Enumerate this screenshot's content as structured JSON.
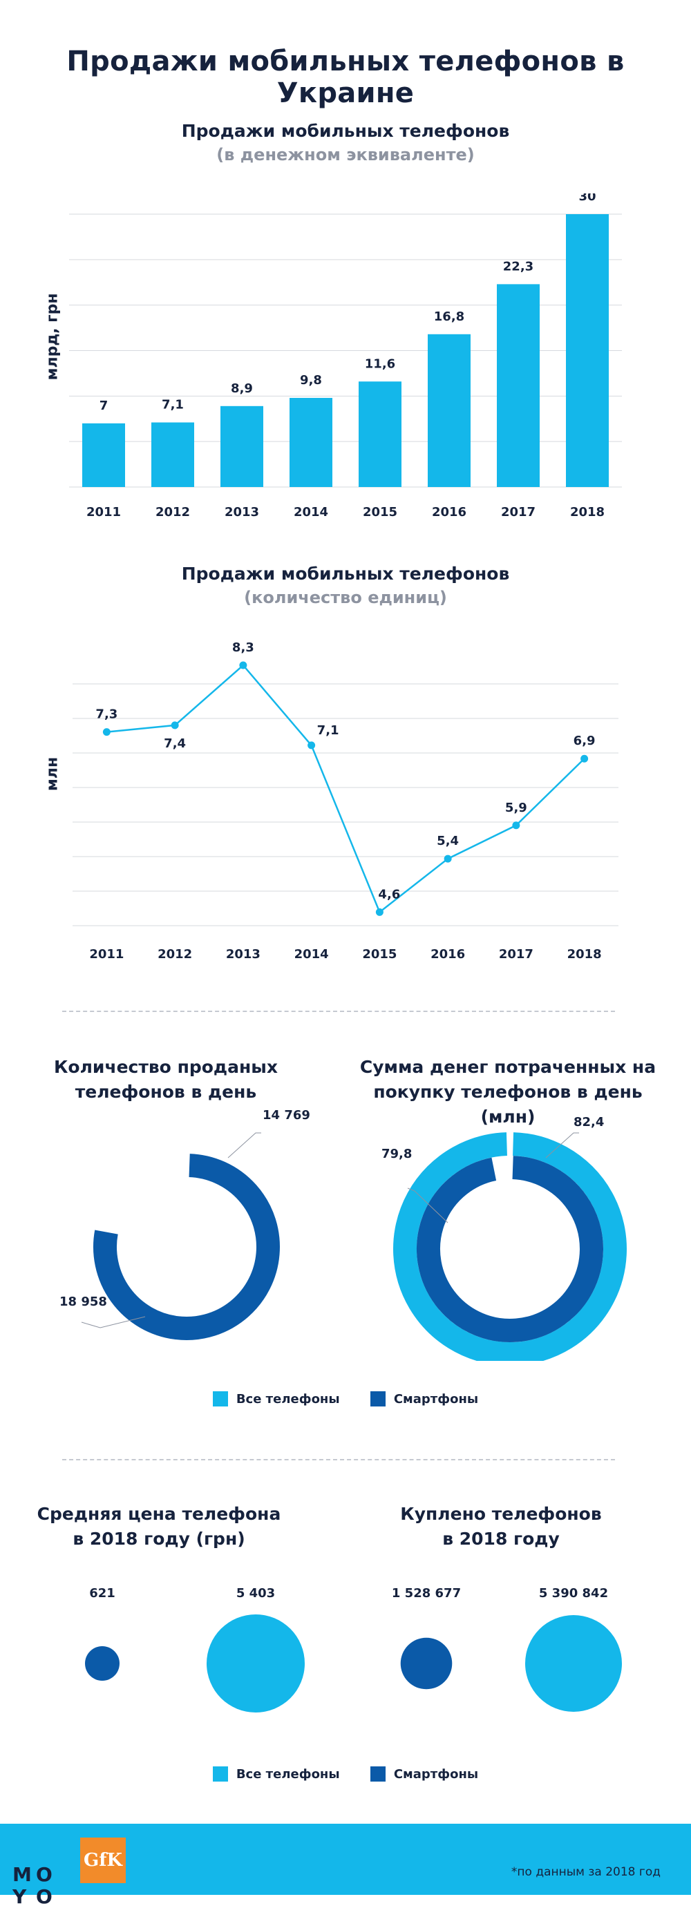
{
  "page_title": "Продажи мобильных телефонов в Украине",
  "colors": {
    "light": "#14b7ea",
    "dark": "#0b5aa8",
    "grid": "#d6d9de",
    "text": "#16223d"
  },
  "chart_data": [
    {
      "type": "bar",
      "title": "Продажи  мобильных телефонов",
      "subtitle": "(в денежном эквиваленте)",
      "ylabel": "млрд, грн",
      "categories": [
        "2011",
        "2012",
        "2013",
        "2014",
        "2015",
        "2016",
        "2017",
        "2018"
      ],
      "values": [
        7,
        7.1,
        8.9,
        9.8,
        11.6,
        16.8,
        22.3,
        30
      ],
      "value_labels": [
        "7",
        "7,1",
        "8,9",
        "9,8",
        "11,6",
        "16,8",
        "22,3",
        "30"
      ],
      "ylim": [
        0,
        30
      ],
      "grid": true
    },
    {
      "type": "line",
      "title": "Продажи  мобильных телефонов",
      "subtitle": "(количество единиц)",
      "ylabel": "млн",
      "categories": [
        "2011",
        "2012",
        "2013",
        "2014",
        "2015",
        "2016",
        "2017",
        "2018"
      ],
      "values": [
        7.3,
        7.4,
        8.3,
        7.1,
        4.6,
        5.4,
        5.9,
        6.9
      ],
      "value_labels": [
        "7,3",
        "7,4",
        "8,3",
        "7,1",
        "4,6",
        "5,4",
        "5,9",
        "6,9"
      ],
      "ylim": [
        4.5,
        8.0
      ],
      "grid": true
    },
    {
      "type": "pie",
      "title": "Количество проданых телефонов в день",
      "slices": [
        {
          "name": "Все телефоны",
          "value": 18958,
          "label": "18 958"
        },
        {
          "name": "Смартфоны",
          "value": 14769,
          "label": "14 769"
        }
      ]
    },
    {
      "type": "pie",
      "title": "Сумма денег потраченных на покупку телефонов в день (млн)",
      "slices": [
        {
          "name": "Все телефоны",
          "value": 82.4,
          "label": "82,4"
        },
        {
          "name": "Смартфоны",
          "value": 79.8,
          "label": "79,8"
        }
      ]
    },
    {
      "type": "scatter",
      "title": "Средняя цена телефона в 2018 году (грн)",
      "points": [
        {
          "name": "Смартфоны",
          "value": 621,
          "label": "621"
        },
        {
          "name": "Все телефоны",
          "value": 5403,
          "label": "5 403"
        }
      ]
    },
    {
      "type": "scatter",
      "title": "Куплено телефонов в 2018 году",
      "points": [
        {
          "name": "Смартфоны",
          "value": 1528677,
          "label": "1 528 677"
        },
        {
          "name": "Все телефоны",
          "value": 5390842,
          "label": "5 390 842"
        }
      ]
    }
  ],
  "donut_titles": {
    "left_line1": "Количество проданых",
    "left_line2": "телефонов в день",
    "right_line1": "Сумма денег потраченных на",
    "right_line2": "покупку телефонов в день (млн)"
  },
  "bubble_titles": {
    "left_line1": "Средняя цена телефона",
    "left_line2": "в 2018 году (грн)",
    "right_line1": "Куплено телефонов",
    "right_line2": "в 2018 году"
  },
  "legend": {
    "all": "Все телефоны",
    "smart": "Смартфоны"
  },
  "footer": {
    "logo_moyo": [
      "М",
      "О",
      "Y",
      "О"
    ],
    "logo_gfk": "GfK",
    "footnote": "*по данным за 2018 год"
  }
}
